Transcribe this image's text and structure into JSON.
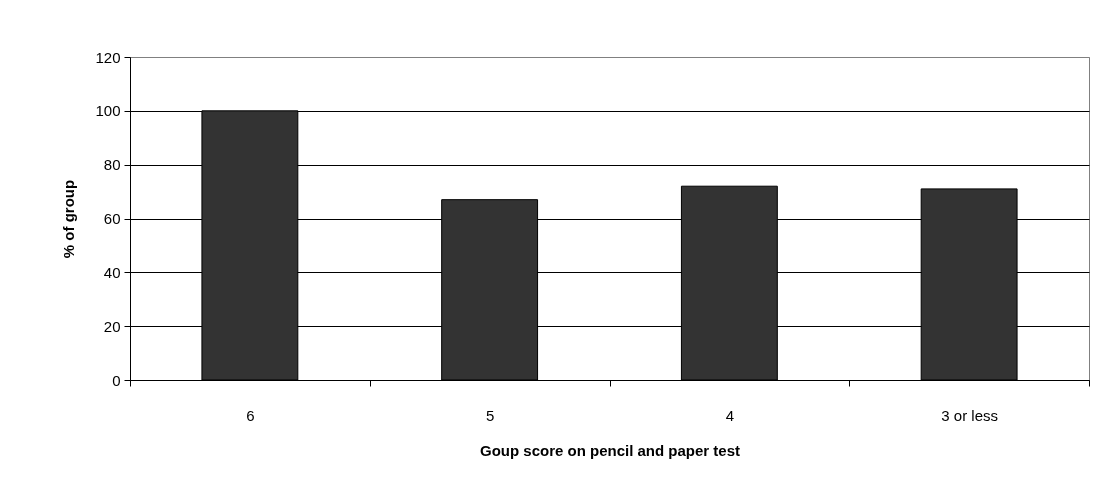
{
  "chart_data": {
    "type": "bar",
    "xlabel": "Goup score on pencil and paper test",
    "ylabel": "% of group",
    "categories": [
      "6",
      "5",
      "4",
      "3 or less"
    ],
    "series": [
      {
        "color": "#333333",
        "values": [
          100,
          67,
          72,
          71
        ]
      }
    ],
    "ylim": [
      0,
      120
    ],
    "yticks": [
      0,
      20,
      40,
      60,
      80,
      100,
      120
    ],
    "grid": "y",
    "legend": false
  }
}
